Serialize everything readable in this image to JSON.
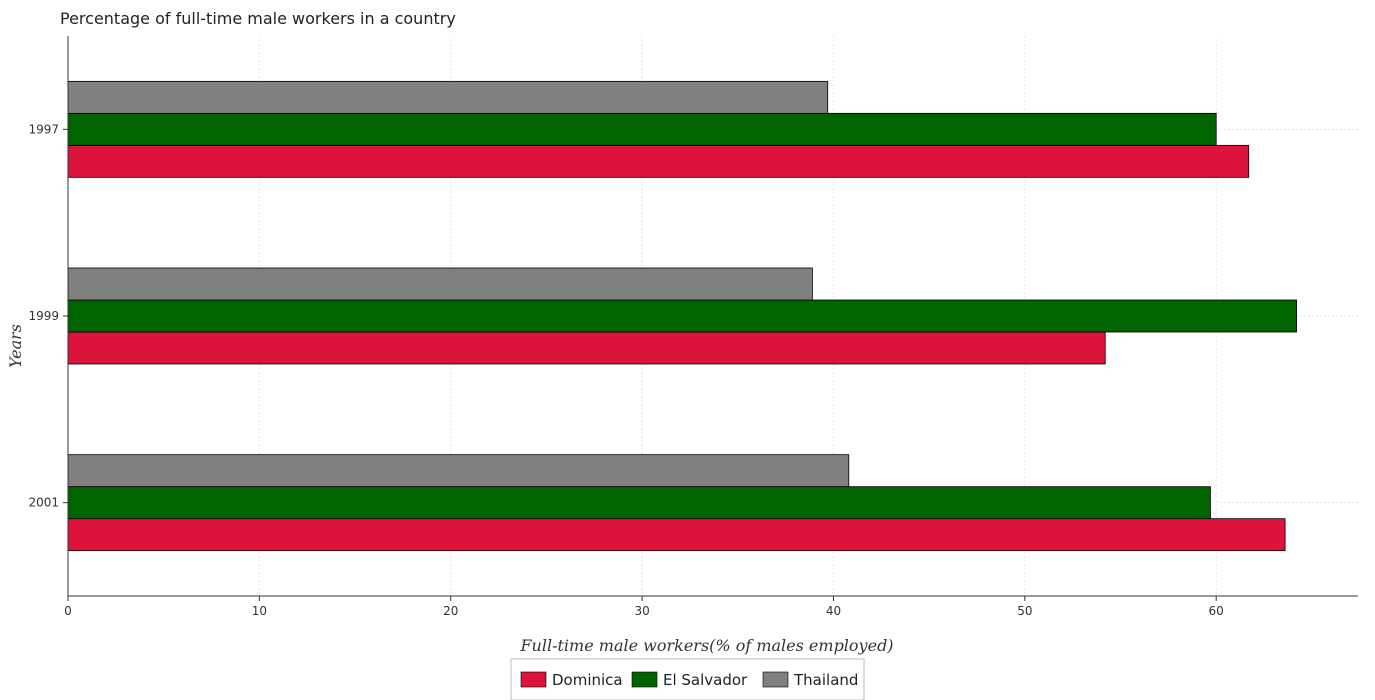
{
  "chart_data": {
    "type": "bar",
    "orientation": "horizontal",
    "title": "Percentage of full-time male workers in a country",
    "xlabel": "Full-time male workers(% of males employed)",
    "ylabel": "Years",
    "categories": [
      "1997",
      "1999",
      "2001"
    ],
    "series": [
      {
        "name": "Dominica",
        "color": "#dc143c",
        "values": [
          61.7,
          54.2,
          63.6
        ]
      },
      {
        "name": "El Salvador",
        "color": "#006400",
        "values": [
          60.0,
          64.2,
          59.7
        ]
      },
      {
        "name": "Thailand",
        "color": "#808080",
        "values": [
          39.7,
          38.9,
          40.8
        ]
      }
    ],
    "xlim": [
      0,
      67.41
    ],
    "xticks": [
      "0",
      "10",
      "20",
      "30",
      "40",
      "50",
      "60"
    ],
    "grid": true,
    "legend_position": "bottom-center"
  }
}
